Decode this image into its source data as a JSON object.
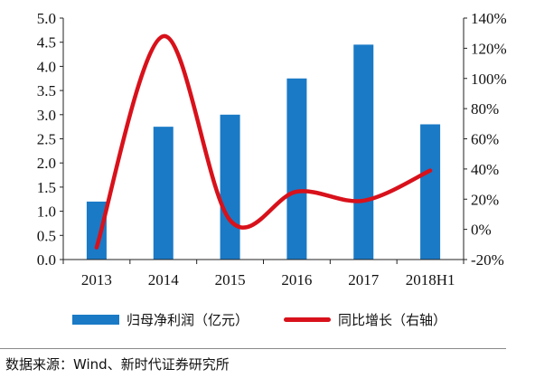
{
  "chart_data": {
    "type": "bar+line",
    "categories": [
      "2013",
      "2014",
      "2015",
      "2016",
      "2017",
      "2018H1"
    ],
    "series": [
      {
        "name": "归母净利润（亿元）",
        "type": "bar",
        "axis": "left",
        "values": [
          1.2,
          2.75,
          3.0,
          3.75,
          4.45,
          2.8
        ]
      },
      {
        "name": "同比增长（右轴）",
        "type": "line",
        "axis": "right",
        "values": [
          -12,
          128,
          6,
          25,
          19,
          39
        ]
      }
    ],
    "left_axis": {
      "ylim": [
        0,
        5
      ],
      "ticks": [
        "0.0",
        "0.5",
        "1.0",
        "1.5",
        "2.0",
        "2.5",
        "3.0",
        "3.5",
        "4.0",
        "4.5",
        "5.0"
      ]
    },
    "right_axis": {
      "ylim": [
        -20,
        140
      ],
      "ticks": [
        "-20%",
        "0%",
        "20%",
        "40%",
        "60%",
        "80%",
        "100%",
        "120%",
        "140%"
      ]
    },
    "colors": {
      "bar": "#1a7ac6",
      "line": "#d8111b"
    },
    "legend_position": "bottom",
    "grid": false
  },
  "source": "数据来源：Wind、新时代证券研究所"
}
